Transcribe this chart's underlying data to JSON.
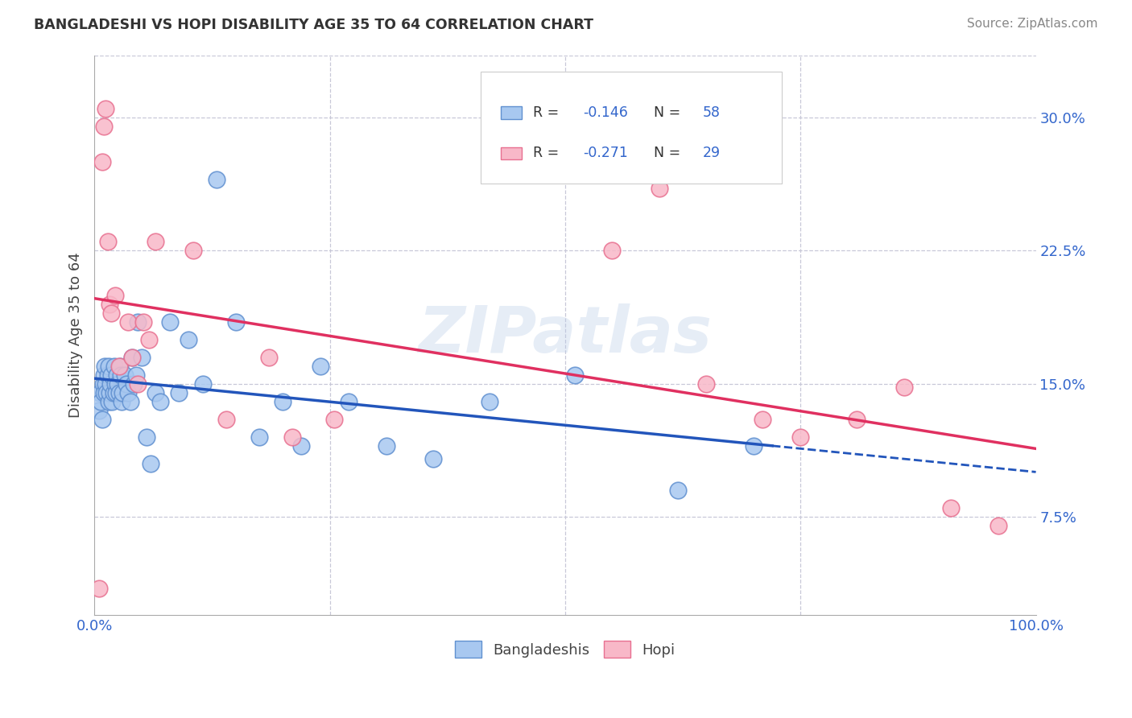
{
  "title": "BANGLADESHI VS HOPI DISABILITY AGE 35 TO 64 CORRELATION CHART",
  "source": "Source: ZipAtlas.com",
  "ylabel": "Disability Age 35 to 64",
  "xlim": [
    0.0,
    1.0
  ],
  "ylim": [
    0.02,
    0.335
  ],
  "yticks": [
    0.075,
    0.15,
    0.225,
    0.3
  ],
  "ytick_labels": [
    "7.5%",
    "15.0%",
    "22.5%",
    "30.0%"
  ],
  "blue_R": -0.146,
  "blue_N": 58,
  "pink_R": -0.271,
  "pink_N": 29,
  "blue_color": "#A8C8F0",
  "pink_color": "#F8B8C8",
  "blue_edge": "#6090D0",
  "pink_edge": "#E87090",
  "regression_blue": "#2255BB",
  "regression_pink": "#E03060",
  "watermark": "ZIPatlas",
  "legend_label_blue": "Bangladeshis",
  "legend_label_pink": "Hopi",
  "blue_x": [
    0.005,
    0.006,
    0.007,
    0.008,
    0.009,
    0.01,
    0.01,
    0.011,
    0.012,
    0.013,
    0.014,
    0.015,
    0.015,
    0.016,
    0.017,
    0.018,
    0.019,
    0.02,
    0.021,
    0.022,
    0.023,
    0.024,
    0.025,
    0.026,
    0.027,
    0.028,
    0.029,
    0.03,
    0.032,
    0.034,
    0.036,
    0.038,
    0.04,
    0.042,
    0.044,
    0.046,
    0.05,
    0.055,
    0.06,
    0.065,
    0.07,
    0.08,
    0.09,
    0.1,
    0.115,
    0.13,
    0.15,
    0.175,
    0.2,
    0.22,
    0.24,
    0.27,
    0.31,
    0.36,
    0.42,
    0.51,
    0.62,
    0.7
  ],
  "blue_y": [
    0.135,
    0.145,
    0.14,
    0.13,
    0.15,
    0.145,
    0.155,
    0.16,
    0.15,
    0.145,
    0.155,
    0.14,
    0.16,
    0.145,
    0.15,
    0.155,
    0.14,
    0.145,
    0.16,
    0.15,
    0.145,
    0.155,
    0.15,
    0.145,
    0.16,
    0.155,
    0.14,
    0.145,
    0.155,
    0.15,
    0.145,
    0.14,
    0.165,
    0.15,
    0.155,
    0.185,
    0.165,
    0.12,
    0.105,
    0.145,
    0.14,
    0.185,
    0.145,
    0.175,
    0.15,
    0.265,
    0.185,
    0.12,
    0.14,
    0.115,
    0.16,
    0.14,
    0.115,
    0.108,
    0.14,
    0.155,
    0.09,
    0.115
  ],
  "pink_x": [
    0.005,
    0.008,
    0.01,
    0.012,
    0.014,
    0.016,
    0.018,
    0.022,
    0.026,
    0.036,
    0.04,
    0.046,
    0.052,
    0.058,
    0.065,
    0.105,
    0.14,
    0.185,
    0.21,
    0.255,
    0.55,
    0.6,
    0.65,
    0.71,
    0.75,
    0.81,
    0.86,
    0.91,
    0.96
  ],
  "pink_y": [
    0.035,
    0.275,
    0.295,
    0.305,
    0.23,
    0.195,
    0.19,
    0.2,
    0.16,
    0.185,
    0.165,
    0.15,
    0.185,
    0.175,
    0.23,
    0.225,
    0.13,
    0.165,
    0.12,
    0.13,
    0.225,
    0.26,
    0.15,
    0.13,
    0.12,
    0.13,
    0.148,
    0.08,
    0.07
  ]
}
